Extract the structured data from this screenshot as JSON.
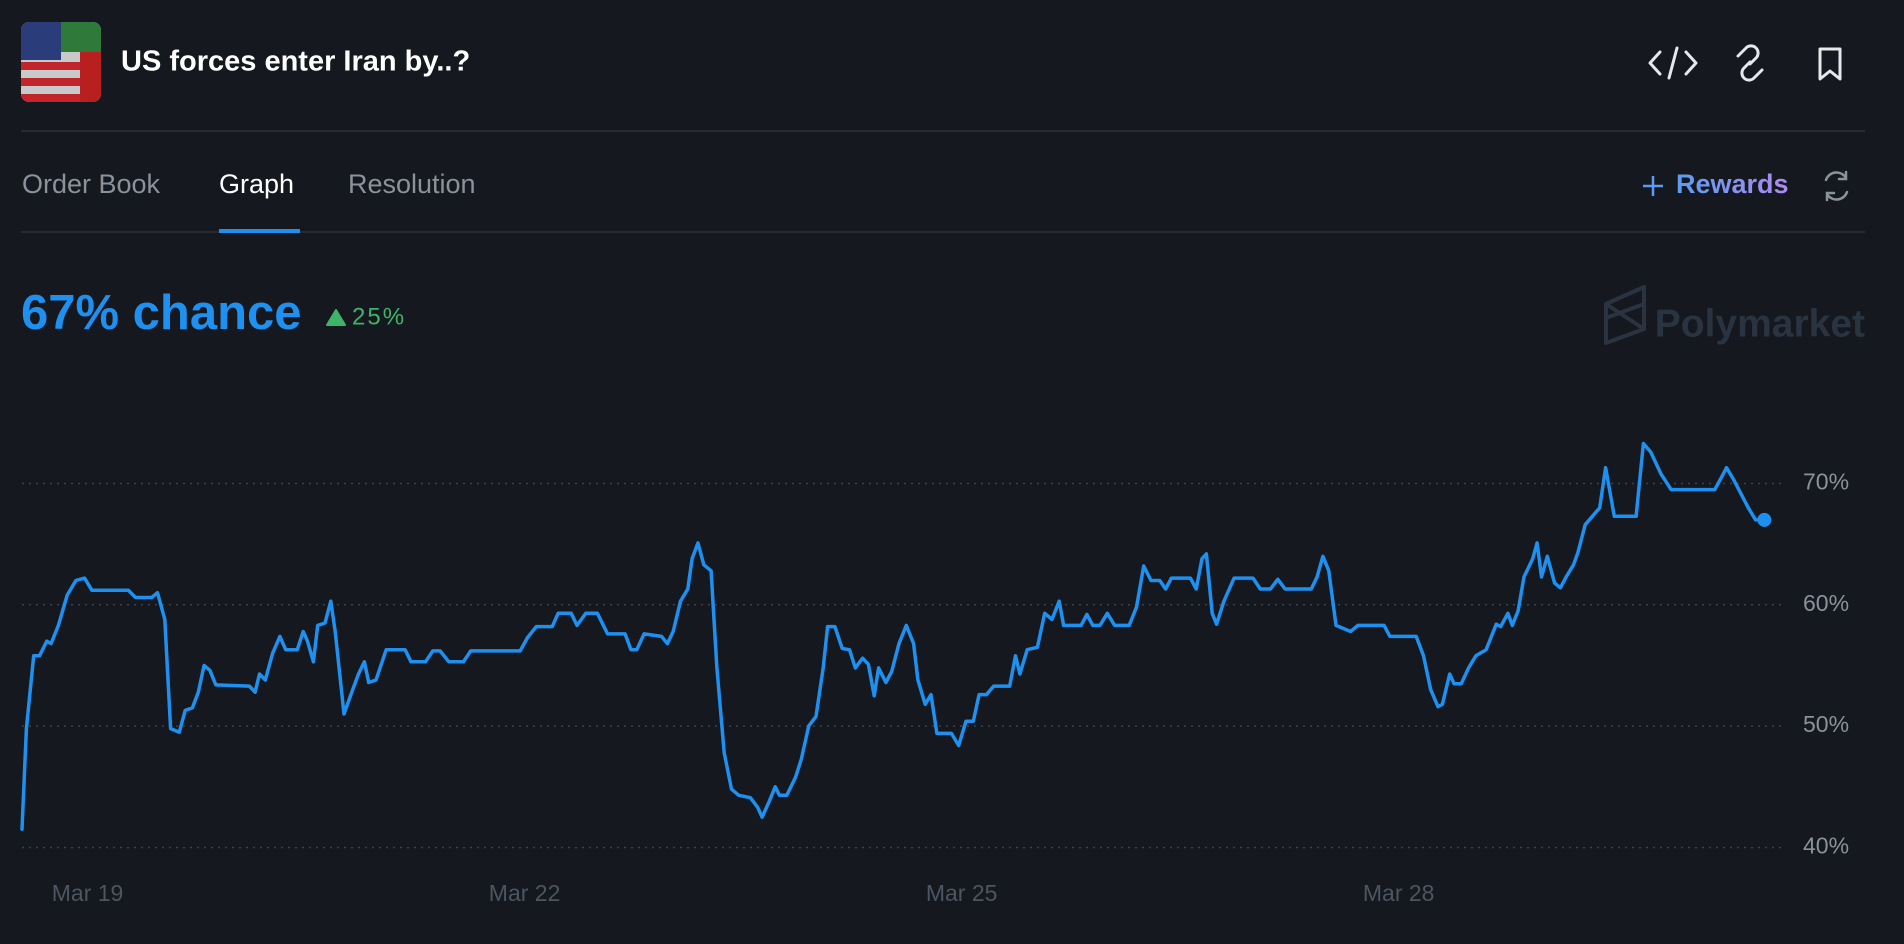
{
  "header": {
    "title": "US forces enter Iran by..?",
    "tabs": [
      "Order Book",
      "Graph",
      "Resolution"
    ],
    "rewards": "Rewards",
    "chance": "67% chance",
    "change": "25%",
    "brand": "Polymarket"
  },
  "chart_data": {
    "type": "line",
    "color": "#1e90f0",
    "grid": true,
    "x": [
      18.55,
      18.58,
      18.63,
      18.67,
      18.72,
      18.75,
      18.8,
      18.86,
      18.92,
      18.98,
      19.03,
      19.28,
      19.33,
      19.44,
      19.48,
      19.53,
      19.57,
      19.63,
      19.67,
      19.72,
      19.76,
      19.8,
      19.84,
      19.88,
      20.11,
      20.15,
      20.18,
      20.22,
      20.27,
      20.32,
      20.36,
      20.44,
      20.48,
      20.51,
      20.55,
      20.58,
      20.63,
      20.67,
      20.7,
      20.76,
      20.82,
      20.86,
      20.9,
      20.93,
      20.98,
      21.05,
      21.18,
      21.22,
      21.32,
      21.37,
      21.42,
      21.48,
      21.58,
      21.63,
      21.97,
      22.02,
      22.08,
      22.19,
      22.23,
      22.32,
      22.36,
      22.42,
      22.5,
      22.57,
      22.69,
      22.73,
      22.77,
      22.82,
      22.94,
      22.98,
      23.02,
      23.07,
      23.12,
      23.15,
      23.19,
      23.23,
      23.28,
      23.32,
      23.37,
      23.42,
      23.47,
      23.55,
      23.6,
      23.63,
      23.68,
      23.72,
      23.75,
      23.8,
      23.86,
      23.9,
      23.95,
      24.0,
      24.05,
      24.08,
      24.13,
      24.18,
      24.23,
      24.27,
      24.32,
      24.36,
      24.4,
      24.43,
      24.48,
      24.52,
      24.57,
      24.62,
      24.67,
      24.7,
      24.75,
      24.79,
      24.83,
      24.93,
      24.98,
      25.03,
      25.08,
      25.12,
      25.17,
      25.22,
      25.33,
      25.37,
      25.4,
      25.45,
      25.52,
      25.57,
      25.62,
      25.67,
      25.7,
      25.82,
      25.86,
      25.9,
      25.95,
      26.0,
      26.05,
      26.15,
      26.2,
      26.25,
      26.3,
      26.36,
      26.4,
      26.44,
      26.57,
      26.61,
      26.65,
      26.68,
      26.72,
      26.75,
      26.8,
      26.87,
      27.0,
      27.05,
      27.12,
      27.17,
      27.22,
      27.4,
      27.44,
      27.48,
      27.52,
      27.57,
      27.67,
      27.72,
      27.9,
      27.94,
      28.12,
      28.17,
      28.22,
      28.27,
      28.3,
      28.35,
      28.38,
      28.43,
      28.48,
      28.53,
      28.6,
      28.67,
      28.7,
      28.75,
      28.78,
      28.82,
      28.86,
      28.92,
      28.95,
      28.98,
      29.02,
      29.07,
      29.11,
      29.15,
      29.2,
      29.23,
      29.28,
      29.33,
      29.38,
      29.42,
      29.48,
      29.63,
      29.68,
      29.73,
      29.8,
      29.87,
      30.17,
      30.22,
      30.25,
      30.3,
      30.4,
      30.45,
      30.51
    ],
    "values": [
      41.5,
      49.8,
      55.8,
      55.8,
      57.0,
      56.8,
      58.3,
      60.8,
      62.0,
      62.2,
      61.2,
      61.2,
      60.6,
      60.6,
      61.0,
      58.8,
      49.8,
      49.5,
      51.3,
      51.5,
      52.8,
      55.0,
      54.6,
      53.4,
      53.3,
      52.8,
      54.3,
      53.8,
      56.0,
      57.4,
      56.3,
      56.3,
      57.8,
      57.0,
      55.3,
      58.3,
      58.5,
      60.3,
      57.8,
      51.0,
      53.0,
      54.3,
      55.3,
      53.6,
      53.8,
      56.3,
      56.3,
      55.3,
      55.3,
      56.2,
      56.2,
      55.3,
      55.3,
      56.2,
      56.2,
      57.3,
      58.2,
      58.2,
      59.3,
      59.3,
      58.3,
      59.3,
      59.3,
      57.6,
      57.6,
      56.3,
      56.3,
      57.6,
      57.4,
      56.8,
      57.8,
      60.3,
      61.3,
      63.8,
      65.1,
      63.3,
      62.8,
      54.8,
      47.8,
      44.8,
      44.3,
      44.1,
      43.3,
      42.5,
      43.8,
      45.0,
      44.3,
      44.3,
      45.8,
      47.3,
      50.0,
      50.8,
      54.8,
      58.2,
      58.2,
      56.4,
      56.3,
      54.8,
      55.6,
      55.1,
      52.5,
      54.8,
      53.6,
      54.5,
      56.8,
      58.3,
      56.8,
      53.8,
      51.8,
      52.6,
      49.4,
      49.4,
      48.4,
      50.4,
      50.4,
      52.6,
      52.6,
      53.3,
      53.3,
      55.8,
      54.3,
      56.3,
      56.5,
      59.3,
      58.8,
      60.3,
      58.3,
      58.3,
      59.2,
      58.3,
      58.3,
      59.3,
      58.3,
      58.3,
      59.8,
      63.2,
      62.0,
      62.0,
      61.3,
      62.2,
      62.2,
      61.3,
      63.8,
      64.2,
      59.3,
      58.4,
      60.3,
      62.2,
      62.2,
      61.3,
      61.3,
      62.1,
      61.3,
      61.3,
      62.3,
      64.0,
      62.8,
      58.3,
      57.8,
      58.3,
      58.3,
      57.4,
      57.4,
      55.8,
      53.0,
      51.6,
      51.8,
      54.3,
      53.5,
      53.5,
      54.8,
      55.8,
      56.3,
      58.4,
      58.2,
      59.3,
      58.3,
      59.5,
      62.3,
      63.8,
      65.1,
      62.3,
      64.0,
      61.8,
      61.4,
      62.3,
      63.3,
      64.3,
      66.6,
      67.3,
      68.0,
      71.3,
      67.3,
      67.3,
      73.3,
      72.6,
      70.8,
      69.5,
      69.5,
      70.6,
      71.3,
      70.3,
      68.0,
      67.0,
      67
    ],
    "xlim": [
      18.55,
      30.59
    ],
    "xticks": [
      {
        "value": 19,
        "label": "Mar 19"
      },
      {
        "value": 22,
        "label": "Mar 22"
      },
      {
        "value": 25,
        "label": "Mar 25"
      },
      {
        "value": 28,
        "label": "Mar 28"
      }
    ],
    "ylim": [
      38.8,
      76.8
    ],
    "yticks": [
      {
        "value": 40,
        "label": "40%"
      },
      {
        "value": 50,
        "label": "50%"
      },
      {
        "value": 60,
        "label": "60%"
      },
      {
        "value": 70,
        "label": "70%"
      }
    ]
  }
}
